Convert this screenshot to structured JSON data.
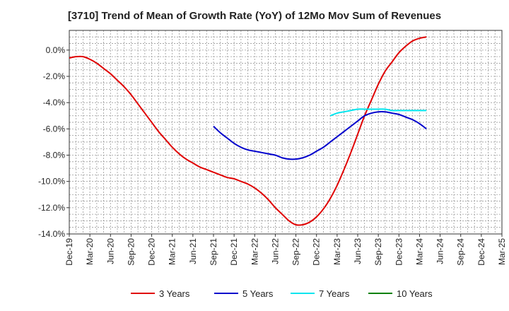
{
  "chart_data": {
    "type": "line",
    "title": "[3710]  Trend of Mean of Growth Rate (YoY) of 12Mo Mov Sum of Revenues",
    "xlabel": "",
    "ylabel": "",
    "ylim": [
      -14,
      1.5
    ],
    "y_ticks": [
      0,
      -2,
      -4,
      -6,
      -8,
      -10,
      -12,
      -14
    ],
    "y_tick_labels": [
      "0.0%",
      "-2.0%",
      "-4.0%",
      "-6.0%",
      "-8.0%",
      "-10.0%",
      "-12.0%",
      "-14.0%"
    ],
    "x_tick_labels": [
      "Dec-19",
      "Mar-20",
      "Jun-20",
      "Sep-20",
      "Dec-20",
      "Mar-21",
      "Jun-21",
      "Sep-21",
      "Dec-21",
      "Mar-22",
      "Jun-22",
      "Sep-22",
      "Dec-22",
      "Mar-23",
      "Jun-23",
      "Sep-23",
      "Dec-23",
      "Mar-24",
      "Jun-24",
      "Sep-24",
      "Dec-24",
      "Mar-25"
    ],
    "grid": true,
    "legend_position": "bottom",
    "series": [
      {
        "name": "3 Years",
        "color": "#e00000",
        "start_index": 0,
        "values": [
          -0.6,
          -0.5,
          -0.5,
          -0.7,
          -1.0,
          -1.4,
          -1.8,
          -2.3,
          -2.8,
          -3.4,
          -4.1,
          -4.8,
          -5.5,
          -6.2,
          -6.8,
          -7.4,
          -7.9,
          -8.3,
          -8.6,
          -8.9,
          -9.1,
          -9.3,
          -9.5,
          -9.7,
          -9.8,
          -10.0,
          -10.2,
          -10.5,
          -10.9,
          -11.4,
          -12.0,
          -12.5,
          -13.0,
          -13.3,
          -13.3,
          -13.1,
          -12.7,
          -12.1,
          -11.3,
          -10.3,
          -9.1,
          -7.8,
          -6.4,
          -5.0,
          -3.8,
          -2.6,
          -1.6,
          -0.9,
          -0.2,
          0.3,
          0.7,
          0.9,
          1.0
        ]
      },
      {
        "name": "5 Years",
        "color": "#0000cc",
        "start_index": 21,
        "values": [
          -5.8,
          -6.3,
          -6.7,
          -7.1,
          -7.4,
          -7.6,
          -7.7,
          -7.8,
          -7.9,
          -8.0,
          -8.2,
          -8.3,
          -8.3,
          -8.2,
          -8.0,
          -7.7,
          -7.4,
          -7.0,
          -6.6,
          -6.2,
          -5.8,
          -5.4,
          -5.0,
          -4.8,
          -4.7,
          -4.7,
          -4.8,
          -4.9,
          -5.1,
          -5.3,
          -5.6,
          -6.0
        ]
      },
      {
        "name": "7 Years",
        "color": "#00e5ee",
        "start_index": 38,
        "values": [
          -5.0,
          -4.8,
          -4.7,
          -4.6,
          -4.5,
          -4.5,
          -4.5,
          -4.5,
          -4.5,
          -4.6,
          -4.6,
          -4.6,
          -4.6,
          -4.6,
          -4.6
        ]
      },
      {
        "name": "10 Years",
        "color": "#008000",
        "start_index": 0,
        "values": []
      }
    ]
  }
}
